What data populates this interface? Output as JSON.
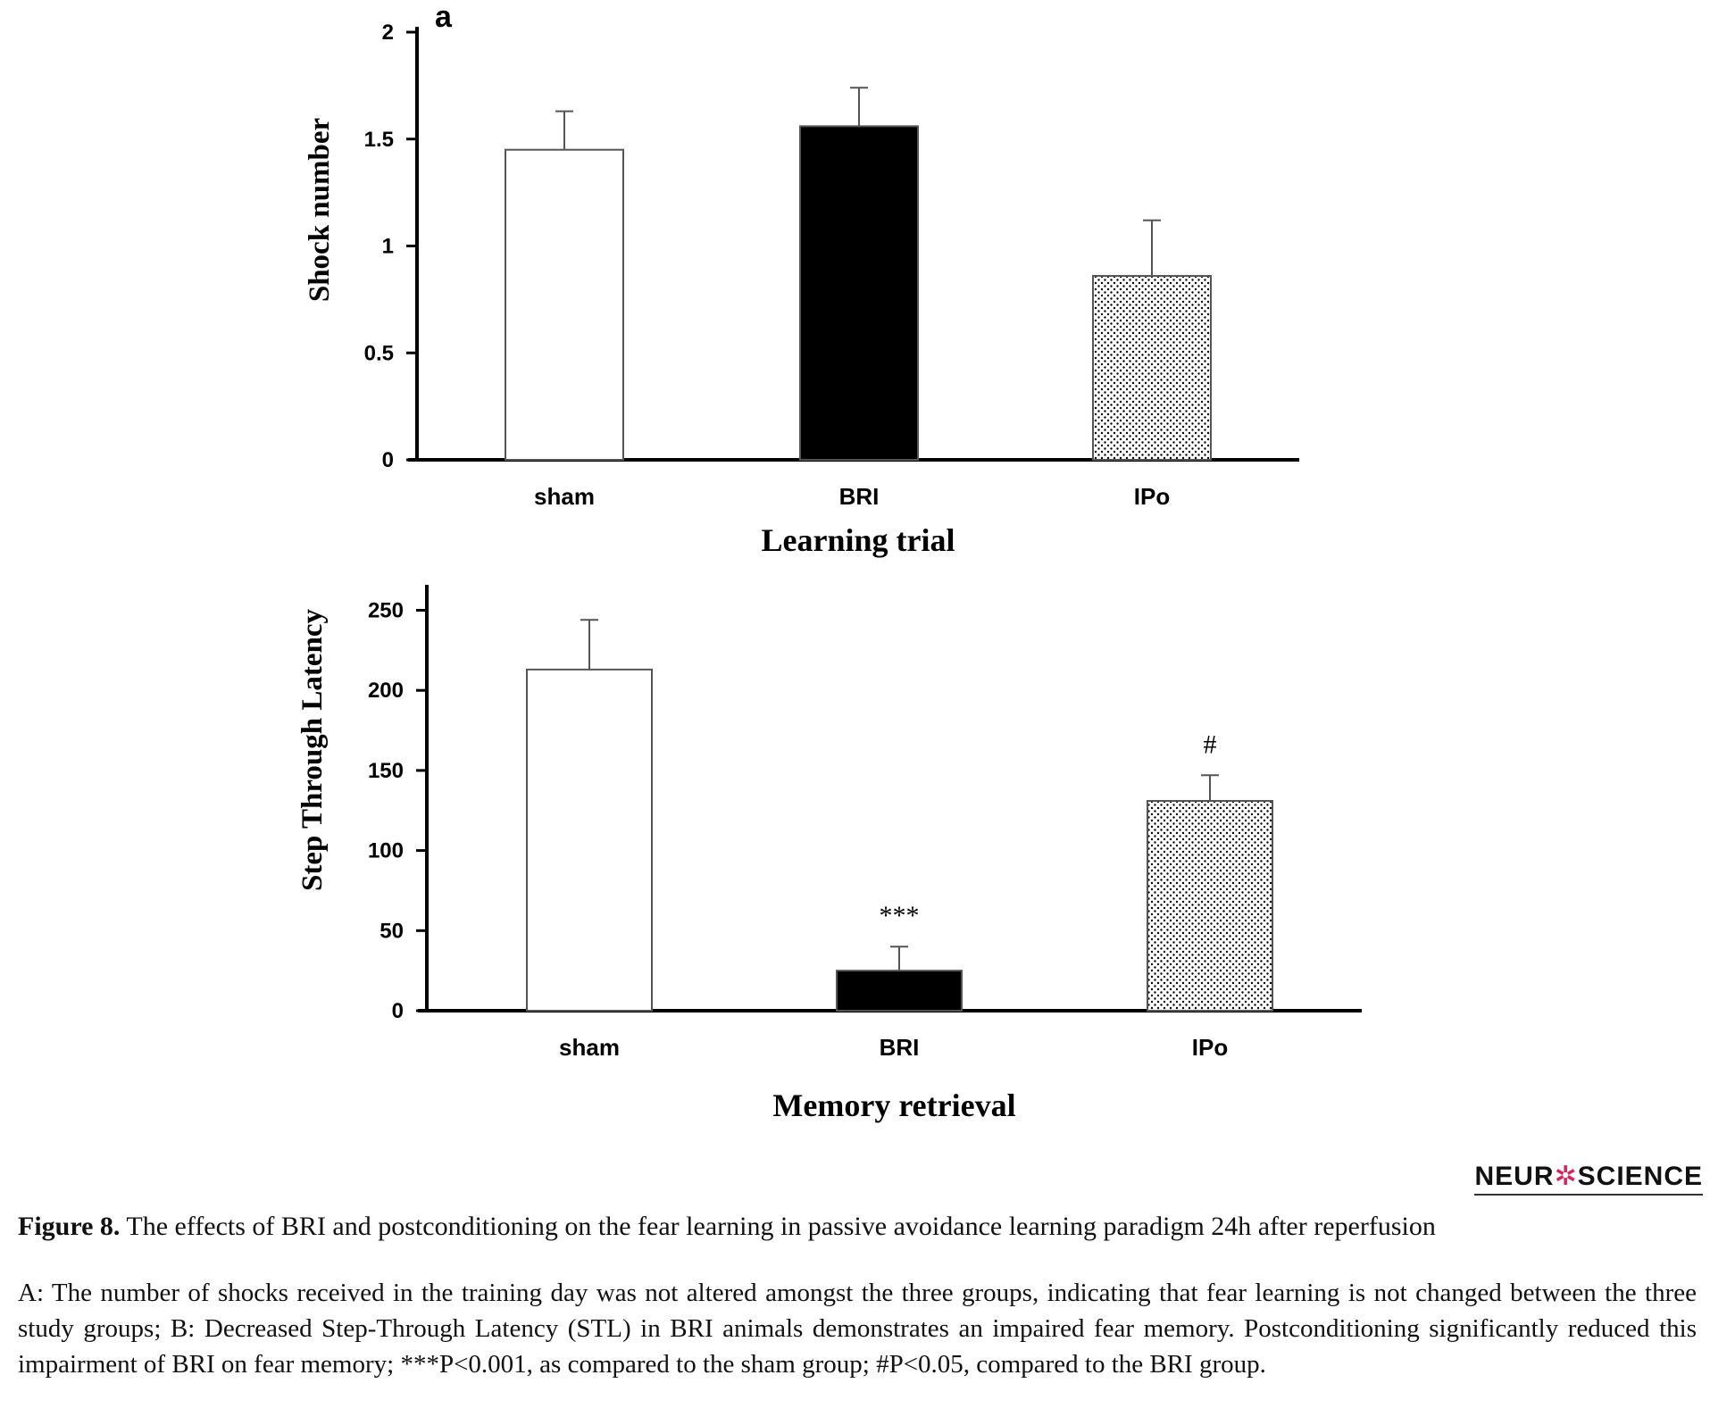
{
  "chart_data": [
    {
      "type": "bar",
      "panel_label": "a",
      "categories": [
        "sham",
        "BRI",
        "IPo"
      ],
      "values": [
        1.45,
        1.56,
        0.86
      ],
      "errors": [
        0.18,
        0.18,
        0.26
      ],
      "fills": [
        "white",
        "black",
        "dotted"
      ],
      "annotations": [
        "",
        "",
        ""
      ],
      "xlabel": "Learning trial",
      "ylabel": "Shock number",
      "ylim": [
        0,
        2
      ],
      "yticks": [
        "0",
        "0.5",
        "1",
        "1.5",
        "2"
      ],
      "ytick_values": [
        0,
        0.5,
        1,
        1.5,
        2
      ],
      "grid": false
    },
    {
      "type": "bar",
      "panel_label": "",
      "categories": [
        "sham",
        "BRI",
        "IPo"
      ],
      "values": [
        213,
        25,
        131
      ],
      "errors": [
        31,
        15,
        16
      ],
      "fills": [
        "white",
        "black",
        "dotted"
      ],
      "annotations": [
        "",
        "***",
        "#"
      ],
      "xlabel": "Memory retrieval",
      "ylabel": "Step Through Latency",
      "ylim": [
        0,
        265
      ],
      "yticks": [
        "0",
        "50",
        "100",
        "150",
        "200",
        "250"
      ],
      "ytick_values": [
        0,
        50,
        100,
        150,
        200,
        250
      ],
      "grid": false
    }
  ],
  "logo": {
    "before": "NEUR",
    "mark": "✲",
    "after": "SCIENCE"
  },
  "caption": {
    "title_bold": "Figure 8.",
    "title_rest": " The effects of BRI and postconditioning on the fear learning in passive avoidance learning paradigm 24h after reperfusion",
    "body": "A: The number of shocks received in the training day was not altered amongst the three groups, indicating that fear learning is not changed between the three study groups; B: Decreased Step-Through Latency (STL) in BRI animals demonstrates an impaired fear memory. Postconditioning significantly reduced this impairment of BRI on fear memory; ***P<0.001, as compared to the sham group; #P<0.05, compared to the BRI group."
  }
}
